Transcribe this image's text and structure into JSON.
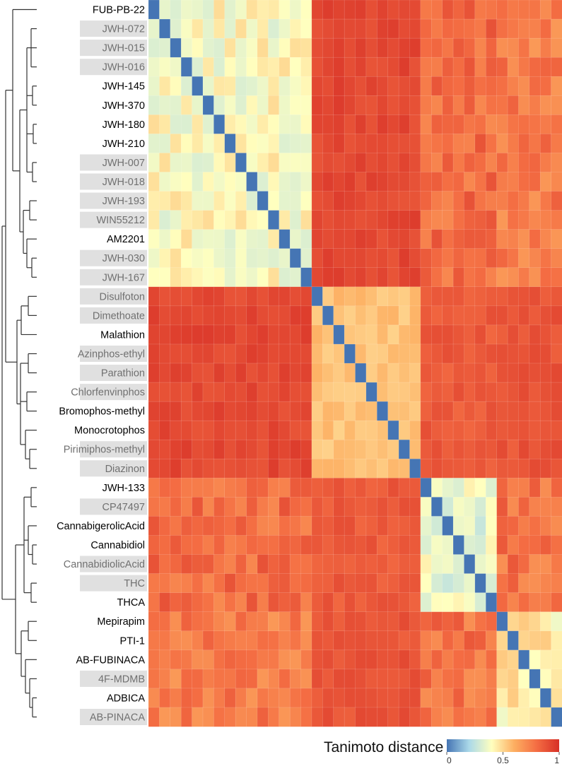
{
  "chart_data": {
    "type": "heatmap",
    "title": "",
    "colorbar": {
      "title": "Tanimoto distance",
      "ticks": [
        0,
        0.5,
        1
      ],
      "tick_labels": [
        "0",
        "0.5",
        "1"
      ],
      "range": [
        0,
        1
      ],
      "colors": [
        "#4575b4",
        "#abd9e9",
        "#ffffbf",
        "#fdae61",
        "#f46d43",
        "#d73027"
      ]
    },
    "row_label_color": "#000000",
    "highlight_color": "#e0e0e0",
    "highlight_text_color": "#707070",
    "rows": [
      {
        "label": "FUB-PB-22",
        "highlight": false,
        "group": 0
      },
      {
        "label": "JWH-072",
        "highlight": true,
        "group": 0
      },
      {
        "label": "JWH-015",
        "highlight": true,
        "group": 0
      },
      {
        "label": "JWH-016",
        "highlight": true,
        "group": 0
      },
      {
        "label": "JWH-145",
        "highlight": false,
        "group": 0
      },
      {
        "label": "JWH-370",
        "highlight": false,
        "group": 0
      },
      {
        "label": "JWH-180",
        "highlight": false,
        "group": 0
      },
      {
        "label": "JWH-210",
        "highlight": false,
        "group": 0
      },
      {
        "label": "JWH-007",
        "highlight": true,
        "group": 0
      },
      {
        "label": "JWH-018",
        "highlight": true,
        "group": 0
      },
      {
        "label": "JWH-193",
        "highlight": true,
        "group": 0
      },
      {
        "label": "WIN55212",
        "highlight": true,
        "group": 0
      },
      {
        "label": "AM2201",
        "highlight": false,
        "group": 0
      },
      {
        "label": "JWH-030",
        "highlight": true,
        "group": 0
      },
      {
        "label": "JWH-167",
        "highlight": true,
        "group": 0
      },
      {
        "label": "Disulfoton",
        "highlight": true,
        "group": 1
      },
      {
        "label": "Dimethoate",
        "highlight": true,
        "group": 1
      },
      {
        "label": "Malathion",
        "highlight": false,
        "group": 1
      },
      {
        "label": "Azinphos-ethyl",
        "highlight": true,
        "group": 1
      },
      {
        "label": "Parathion",
        "highlight": true,
        "group": 1
      },
      {
        "label": "Chlorfenvinphos",
        "highlight": true,
        "group": 1
      },
      {
        "label": "Bromophos-methyl",
        "highlight": false,
        "group": 1
      },
      {
        "label": "Monocrotophos",
        "highlight": false,
        "group": 1
      },
      {
        "label": "Pirimiphos-methyl",
        "highlight": true,
        "group": 1
      },
      {
        "label": "Diazinon",
        "highlight": true,
        "group": 1
      },
      {
        "label": "JWH-133",
        "highlight": false,
        "group": 2
      },
      {
        "label": "CP47497",
        "highlight": true,
        "group": 2
      },
      {
        "label": "CannabigerolicAcid",
        "highlight": false,
        "group": 2
      },
      {
        "label": "Cannabidiol",
        "highlight": false,
        "group": 2
      },
      {
        "label": "CannabidiolicAcid",
        "highlight": true,
        "group": 2
      },
      {
        "label": "THC",
        "highlight": true,
        "group": 2
      },
      {
        "label": "THCA",
        "highlight": false,
        "group": 2
      },
      {
        "label": "Mepirapim",
        "highlight": false,
        "group": 3
      },
      {
        "label": "PTI-1",
        "highlight": false,
        "group": 3
      },
      {
        "label": "AB-FUBINACA",
        "highlight": false,
        "group": 3
      },
      {
        "label": "4F-MDMB",
        "highlight": true,
        "group": 3
      },
      {
        "label": "ADBICA",
        "highlight": false,
        "group": 3
      },
      {
        "label": "AB-PINACA",
        "highlight": true,
        "group": 3
      }
    ],
    "group_distance": [
      [
        0.4,
        0.92,
        0.8,
        0.75
      ],
      [
        0.92,
        0.55,
        0.86,
        0.88
      ],
      [
        0.8,
        0.86,
        0.35,
        0.78
      ],
      [
        0.75,
        0.88,
        0.78,
        0.45
      ]
    ],
    "diagonal_value": 0,
    "dendrogram": "hierarchical clustering, 4 main clades"
  }
}
